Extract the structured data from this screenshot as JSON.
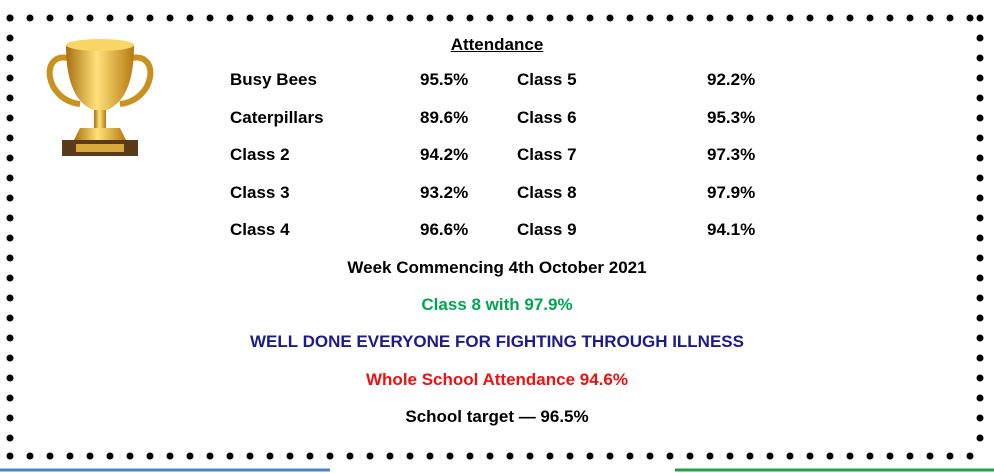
{
  "title": "Attendance",
  "table": {
    "rows": [
      [
        "Busy Bees",
        "95.5%",
        "Class 5",
        "92.2%"
      ],
      [
        "Caterpillars",
        "89.6%",
        "Class 6",
        "95.3%"
      ],
      [
        "Class 2",
        "94.2%",
        "Class 7",
        "97.3%"
      ],
      [
        "Class 3",
        "93.2%",
        "Class 8",
        "97.9%"
      ],
      [
        "Class 4",
        "96.6%",
        "Class 9",
        "94.1%"
      ]
    ]
  },
  "lines": [
    "Week Commencing 4th October 2021",
    "Class 8 with 97.9%",
    "WELL DONE EVERYONE FOR FIGHTING THROUGH ILLNESS",
    "Whole School Attendance 94.6%",
    "School target — 96.5%"
  ]
}
